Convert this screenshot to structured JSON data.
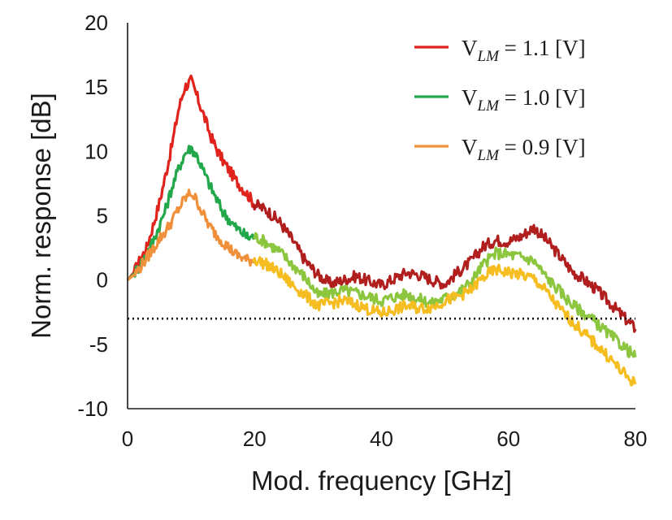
{
  "chart_data": {
    "type": "line",
    "xlabel": "Mod. frequency [GHz]",
    "ylabel": "Norm. response [dB]",
    "xlim": [
      0,
      80
    ],
    "ylim": [
      -10,
      20
    ],
    "xticks": [
      "0",
      "20",
      "40",
      "60",
      "80"
    ],
    "yticks": [
      "-10",
      "-5",
      "0",
      "5",
      "10",
      "15",
      "20"
    ],
    "grid": false,
    "legend_position": "top-right",
    "reference_line": {
      "y": -3,
      "style": "dotted",
      "color": "#111111"
    },
    "series": [
      {
        "name": "V_LM = 1.1 [V]",
        "legend": {
          "v": "V",
          "sub": "LM",
          "rest": " = 1.1 [V]"
        },
        "color": "#e0231c",
        "color_high_freq": "#b01e1e",
        "x": [
          0,
          1,
          2,
          3,
          4,
          5,
          6,
          7,
          8,
          9,
          10,
          11,
          12,
          13,
          14,
          15,
          17,
          19,
          20,
          22,
          24,
          26,
          28,
          30,
          32,
          34,
          36,
          38,
          40,
          42,
          44,
          46,
          48,
          50,
          52,
          54,
          56,
          58,
          60,
          62,
          64,
          66,
          68,
          70,
          72,
          74,
          76,
          78,
          80
        ],
        "y": [
          0,
          0.6,
          1.6,
          2.5,
          4.2,
          6.0,
          8.2,
          10.5,
          13.2,
          15.0,
          15.5,
          14.2,
          12.8,
          11.3,
          10.2,
          9.3,
          7.8,
          6.6,
          5.9,
          5.4,
          4.5,
          3.1,
          1.5,
          0.4,
          -0.3,
          0.0,
          0.3,
          -0.1,
          -0.4,
          0.1,
          0.6,
          0.4,
          0.0,
          -0.3,
          0.6,
          1.4,
          2.6,
          3.1,
          3.0,
          3.4,
          4.1,
          3.1,
          1.9,
          0.7,
          0.0,
          -0.8,
          -1.8,
          -2.8,
          -3.8
        ]
      },
      {
        "name": "V_LM = 1.0 [V]",
        "legend": {
          "v": "V",
          "sub": "LM",
          "rest": " = 1.0 [V]"
        },
        "color": "#22a84a",
        "color_high_freq": "#8cc63f",
        "x": [
          0,
          1,
          2,
          3,
          4,
          5,
          6,
          7,
          8,
          9,
          10,
          11,
          12,
          13,
          14,
          15,
          17,
          19,
          20,
          22,
          24,
          26,
          28,
          30,
          32,
          34,
          36,
          38,
          40,
          42,
          44,
          46,
          48,
          50,
          52,
          54,
          56,
          58,
          60,
          62,
          64,
          66,
          68,
          70,
          72,
          74,
          76,
          78,
          80
        ],
        "y": [
          0,
          0.5,
          1.2,
          2.0,
          3.0,
          4.2,
          5.5,
          7.2,
          8.6,
          9.8,
          10.3,
          9.6,
          8.4,
          7.3,
          6.3,
          5.3,
          4.1,
          3.3,
          3.4,
          2.9,
          2.2,
          1.2,
          0.2,
          -1.2,
          -1.0,
          -0.8,
          -1.0,
          -1.3,
          -1.6,
          -1.3,
          -1.1,
          -1.5,
          -1.8,
          -1.4,
          -1.0,
          -0.2,
          1.2,
          2.1,
          2.0,
          1.8,
          1.5,
          0.2,
          -0.8,
          -1.9,
          -2.6,
          -3.4,
          -4.3,
          -5.1,
          -6.0
        ]
      },
      {
        "name": "V_LM = 0.9 [V]",
        "legend": {
          "v": "V",
          "sub": "LM",
          "rest": " = 0.9 [V]"
        },
        "color": "#f0903a",
        "color_high_freq": "#f5bd1f",
        "x": [
          0,
          1,
          2,
          3,
          4,
          5,
          6,
          7,
          8,
          9,
          10,
          11,
          12,
          13,
          14,
          15,
          17,
          19,
          20,
          22,
          24,
          26,
          28,
          30,
          32,
          34,
          36,
          38,
          40,
          42,
          44,
          46,
          48,
          50,
          52,
          54,
          56,
          58,
          60,
          62,
          64,
          66,
          68,
          70,
          72,
          74,
          76,
          78,
          80
        ],
        "y": [
          0,
          0.4,
          1.0,
          1.7,
          2.4,
          3.2,
          3.8,
          4.6,
          5.5,
          6.3,
          6.8,
          6.1,
          5.0,
          4.1,
          3.5,
          3.0,
          2.0,
          1.5,
          1.6,
          1.2,
          0.5,
          -0.4,
          -1.2,
          -2.0,
          -1.8,
          -1.6,
          -1.9,
          -2.3,
          -2.6,
          -2.3,
          -2.0,
          -2.2,
          -2.1,
          -1.6,
          -1.3,
          -0.8,
          0.2,
          0.8,
          0.6,
          0.4,
          0.1,
          -0.9,
          -2.2,
          -3.2,
          -4.2,
          -5.1,
          -6.1,
          -7.2,
          -8.1
        ]
      }
    ]
  }
}
